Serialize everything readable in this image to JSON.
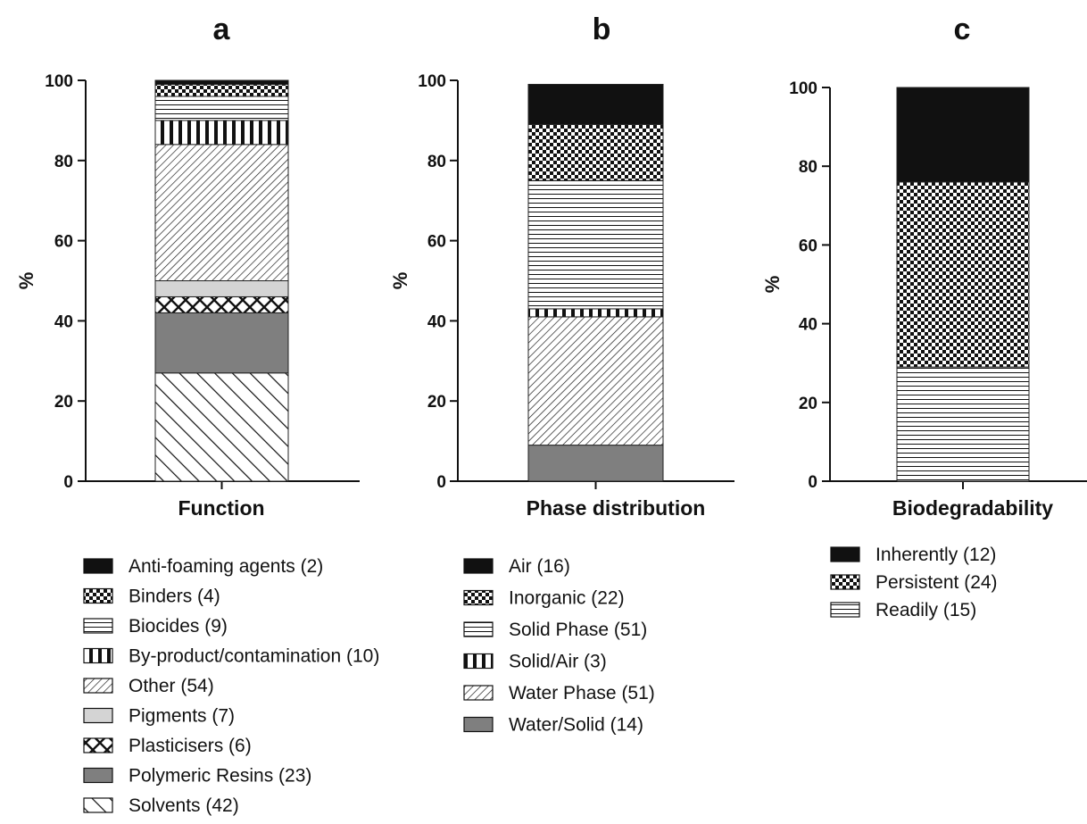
{
  "chart_data": [
    {
      "type": "bar",
      "stacked": true,
      "panel_letter": "a",
      "xlabel": "Function",
      "ylabel": "%",
      "ylim": [
        0,
        100
      ],
      "yticks": [
        "0",
        "20",
        "40",
        "60",
        "80",
        "100"
      ],
      "series": [
        {
          "name": "Solvents (42)",
          "value": 27,
          "pattern": "diag-down"
        },
        {
          "name": "Polymeric Resins (23)",
          "value": 15,
          "pattern": "solid-gray"
        },
        {
          "name": "Plasticisers (6)",
          "value": 4,
          "pattern": "crosshatch"
        },
        {
          "name": "Pigments (7)",
          "value": 4,
          "pattern": "light-gray"
        },
        {
          "name": "Other (54)",
          "value": 34,
          "pattern": "diag-up"
        },
        {
          "name": "By-product/contamination (10)",
          "value": 6,
          "pattern": "vertical"
        },
        {
          "name": "Biocides (9)",
          "value": 6,
          "pattern": "horizontal"
        },
        {
          "name": "Binders (4)",
          "value": 3,
          "pattern": "checker"
        },
        {
          "name": "Anti-foaming agents (2)",
          "value": 1,
          "pattern": "black"
        }
      ],
      "legend": [
        {
          "name": "Anti-foaming agents (2)",
          "pattern": "black"
        },
        {
          "name": "Binders (4)",
          "pattern": "checker"
        },
        {
          "name": "Biocides (9)",
          "pattern": "horizontal"
        },
        {
          "name": "By-product/contamination (10)",
          "pattern": "vertical"
        },
        {
          "name": "Other (54)",
          "pattern": "diag-up"
        },
        {
          "name": "Pigments (7)",
          "pattern": "light-gray"
        },
        {
          "name": "Plasticisers (6)",
          "pattern": "crosshatch"
        },
        {
          "name": "Polymeric Resins (23)",
          "pattern": "solid-gray"
        },
        {
          "name": "Solvents (42)",
          "pattern": "diag-down"
        }
      ]
    },
    {
      "type": "bar",
      "stacked": true,
      "panel_letter": "b",
      "xlabel": "Phase distribution",
      "ylabel": "%",
      "ylim": [
        0,
        100
      ],
      "yticks": [
        "0",
        "20",
        "40",
        "60",
        "80",
        "100"
      ],
      "series": [
        {
          "name": "Water/Solid (14)",
          "value": 9,
          "pattern": "solid-gray"
        },
        {
          "name": "Water Phase (51)",
          "value": 32,
          "pattern": "diag-up"
        },
        {
          "name": "Solid/Air (3)",
          "value": 2,
          "pattern": "vertical"
        },
        {
          "name": "Solid Phase (51)",
          "value": 32,
          "pattern": "horizontal"
        },
        {
          "name": "Inorganic (22)",
          "value": 14,
          "pattern": "checker"
        },
        {
          "name": "Air (16)",
          "value": 10,
          "pattern": "black"
        }
      ],
      "legend": [
        {
          "name": "Air (16)",
          "pattern": "black"
        },
        {
          "name": "Inorganic (22)",
          "pattern": "checker"
        },
        {
          "name": "Solid Phase (51)",
          "pattern": "horizontal"
        },
        {
          "name": "Solid/Air (3)",
          "pattern": "vertical"
        },
        {
          "name": "Water Phase (51)",
          "pattern": "diag-up"
        },
        {
          "name": "Water/Solid (14)",
          "pattern": "solid-gray"
        }
      ]
    },
    {
      "type": "bar",
      "stacked": true,
      "panel_letter": "c",
      "xlabel": "Biodegradability",
      "ylabel": "%",
      "ylim": [
        0,
        100
      ],
      "yticks": [
        "0",
        "20",
        "40",
        "60",
        "80",
        "100"
      ],
      "series": [
        {
          "name": "Readily (15)",
          "value": 29,
          "pattern": "horizontal"
        },
        {
          "name": "Persistent (24)",
          "value": 47,
          "pattern": "checker"
        },
        {
          "name": "Inherently (12)",
          "value": 24,
          "pattern": "black"
        }
      ],
      "legend": [
        {
          "name": "Inherently (12)",
          "pattern": "black"
        },
        {
          "name": "Persistent (24)",
          "pattern": "checker"
        },
        {
          "name": "Readily (15)",
          "pattern": "horizontal"
        }
      ]
    }
  ]
}
